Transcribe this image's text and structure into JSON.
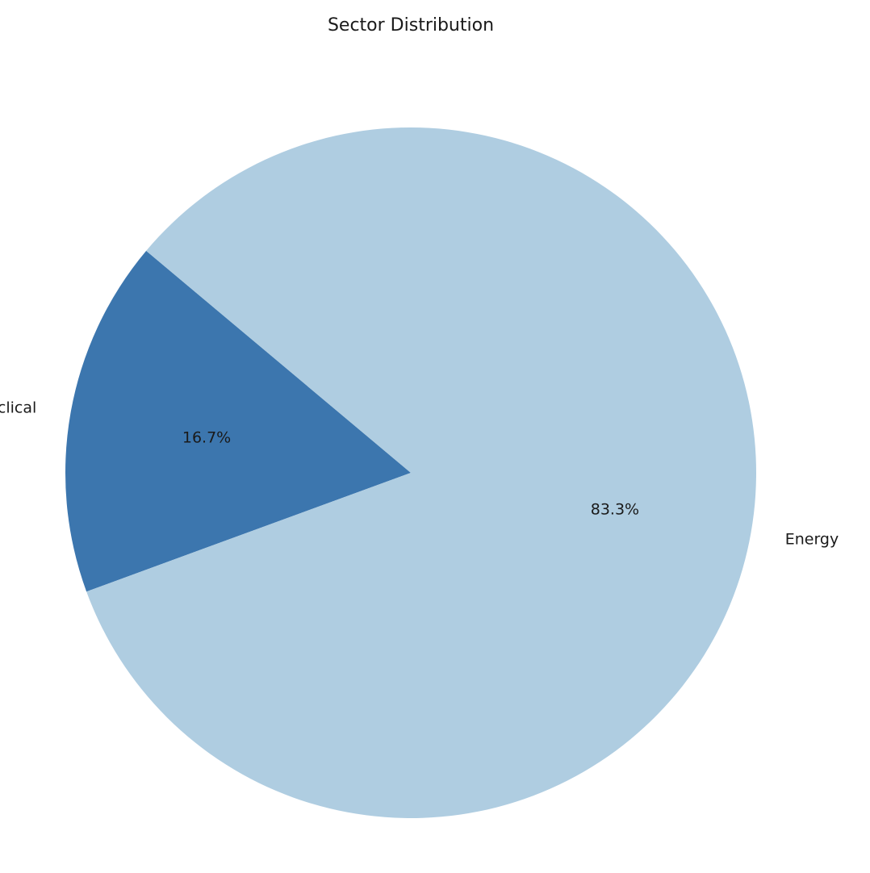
{
  "chart_data": {
    "type": "pie",
    "title": "Sector Distribution",
    "slices": [
      {
        "label": "Energy",
        "value": 83.3,
        "pct_label": "83.3%",
        "color": "#afcde1"
      },
      {
        "label": "Consumer Cyclical",
        "value": 16.7,
        "pct_label": "16.7%",
        "color": "#3c76ae"
      }
    ],
    "start_angle_deg": 140,
    "direction": "counterclockwise",
    "legend": "none"
  }
}
